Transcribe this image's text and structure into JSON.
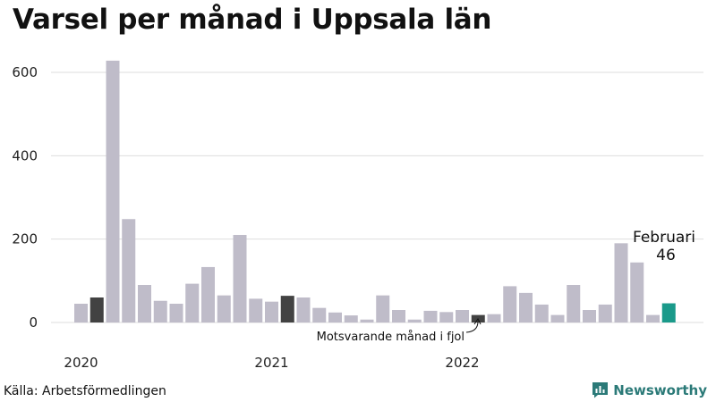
{
  "colors": {
    "bar": "#bfbcc9",
    "same_month_last_year": "#424242",
    "current": "#1a9a8a",
    "grid": "#dddddd",
    "brand": "#2b7a78"
  },
  "icon": "newsworthy-logo-icon",
  "footer": {
    "source": "Källa: Arbetsförmedlingen",
    "brand": "Newsworthy"
  },
  "chart_data": {
    "type": "bar",
    "title": "Varsel per månad i Uppsala län",
    "xlabel": "",
    "ylabel": "",
    "ylim": [
      0,
      650
    ],
    "yticks": [
      0,
      200,
      400,
      600
    ],
    "grid": true,
    "x_tick_labels": [
      {
        "label": "2020",
        "month_index": 0
      },
      {
        "label": "2021",
        "month_index": 12
      },
      {
        "label": "2022",
        "month_index": 24
      }
    ],
    "categories": [
      "2020-01",
      "2020-02",
      "2020-03",
      "2020-04",
      "2020-05",
      "2020-06",
      "2020-07",
      "2020-08",
      "2020-09",
      "2020-10",
      "2020-11",
      "2020-12",
      "2021-01",
      "2021-02",
      "2021-03",
      "2021-04",
      "2021-05",
      "2021-06",
      "2021-07",
      "2021-08",
      "2021-09",
      "2021-10",
      "2021-11",
      "2021-12",
      "2022-01",
      "2022-02",
      "2022-03",
      "2022-04",
      "2022-05",
      "2022-06",
      "2022-07",
      "2022-08",
      "2022-09",
      "2022-10",
      "2022-11",
      "2022-12",
      "2023-01",
      "2023-02"
    ],
    "values": [
      45,
      60,
      628,
      248,
      90,
      52,
      45,
      93,
      133,
      65,
      210,
      57,
      50,
      64,
      60,
      35,
      24,
      17,
      7,
      65,
      30,
      7,
      28,
      25,
      30,
      18,
      20,
      87,
      71,
      43,
      18,
      90,
      30,
      43,
      190,
      144,
      18,
      46
    ],
    "highlight": {
      "same_month_last_year_indices": [
        1,
        13,
        25
      ],
      "current_index": 37
    },
    "annotations": {
      "same_month": "Motsvarande månad i fjol",
      "current_month": "Februari",
      "current_value": "46"
    }
  }
}
